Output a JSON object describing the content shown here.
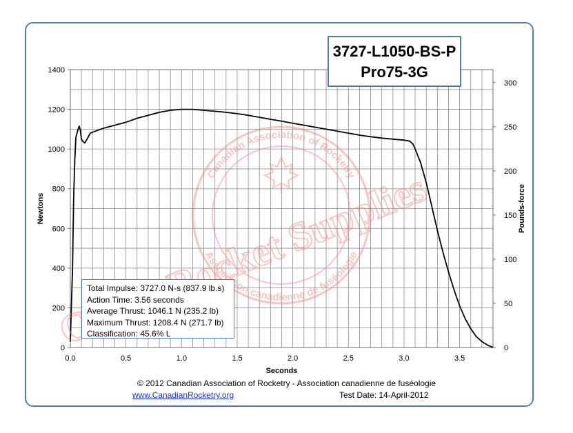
{
  "motor": {
    "designation": "3727-L1050-BS-P",
    "case": "Pro75-3G"
  },
  "stats": {
    "total_impulse": "Total Impulse: 3727.0 N-s (837.9 lb.s)",
    "action_time": "Action Time: 3.56 seconds",
    "average_thrust": "Average Thrust: 1046.1 N (235.2 lb)",
    "maximum_thrust": "Maximum Thrust: 1208.4 N (271.7 lb)",
    "classification": "Classification: 45.6% L"
  },
  "watermark": {
    "text": "Chris' Rocket Supplies",
    "seal_top": "Canadian Association of Rocketry",
    "seal_bottom": "Association canadienne de fuséologie",
    "color": "#f08080"
  },
  "footer": {
    "copyright": "© 2012 Canadian Association of Rocketry - Association canadienne de fuséologie",
    "link": "www.CanadianRocketry.org",
    "test_date": "Test  Date: 14-April-2012"
  },
  "colors": {
    "frame": "#4a7ebb",
    "grid": "#8c8c8c",
    "curve": "#000000",
    "link": "#1a35c8"
  },
  "chart_data": {
    "type": "line",
    "xlabel": "Seconds",
    "ylabel": "Newtons",
    "y2label": "Pounds-force",
    "xlim": [
      0,
      3.8
    ],
    "ylim": [
      0,
      1400
    ],
    "y2lim": [
      0,
      314.7
    ],
    "x_major_ticks": [
      0.0,
      0.5,
      1.0,
      1.5,
      2.0,
      2.5,
      3.0,
      3.5
    ],
    "x_tick_labels": [
      "0.0",
      "0.5",
      "1.0",
      "1.5",
      "2.0",
      "2.5",
      "3.0",
      "3.5"
    ],
    "x_minor_step": 0.1,
    "y_ticks": [
      0,
      200,
      400,
      600,
      800,
      1000,
      1200,
      1400
    ],
    "y_tick_labels": [
      "0",
      "200",
      "400",
      "600",
      "800",
      "1000",
      "1200",
      "1400"
    ],
    "y_minor_step": 100,
    "y2_ticks": [
      0,
      50,
      100,
      150,
      200,
      250,
      300
    ],
    "y2_tick_labels": [
      "0",
      "50",
      "100",
      "150",
      "200",
      "250",
      "300"
    ],
    "grid": true,
    "series": [
      {
        "x": [
          0.0,
          0.02,
          0.03,
          0.04,
          0.05,
          0.06,
          0.07,
          0.08,
          0.09,
          0.1,
          0.11,
          0.13,
          0.15,
          0.18,
          0.2,
          0.25,
          0.3,
          0.4,
          0.5,
          0.6,
          0.7,
          0.8,
          0.9,
          1.0,
          1.1,
          1.2,
          1.3,
          1.4,
          1.5,
          1.6,
          1.7,
          1.8,
          1.9,
          2.0,
          2.1,
          2.2,
          2.3,
          2.4,
          2.5,
          2.6,
          2.7,
          2.8,
          2.9,
          3.0,
          3.05,
          3.08,
          3.1,
          3.15,
          3.2,
          3.25,
          3.3,
          3.35,
          3.4,
          3.45,
          3.5,
          3.55,
          3.6,
          3.65,
          3.7,
          3.75,
          3.78,
          3.8
        ],
        "y": [
          30,
          400,
          750,
          950,
          1060,
          1080,
          1100,
          1115,
          1095,
          1050,
          1040,
          1030,
          1050,
          1080,
          1085,
          1095,
          1105,
          1120,
          1135,
          1155,
          1170,
          1185,
          1195,
          1200,
          1200,
          1195,
          1190,
          1185,
          1178,
          1170,
          1160,
          1150,
          1140,
          1130,
          1120,
          1110,
          1100,
          1090,
          1080,
          1070,
          1062,
          1055,
          1050,
          1045,
          1040,
          1025,
          1000,
          930,
          830,
          710,
          590,
          480,
          380,
          290,
          210,
          145,
          95,
          55,
          30,
          12,
          5,
          0
        ]
      }
    ]
  }
}
